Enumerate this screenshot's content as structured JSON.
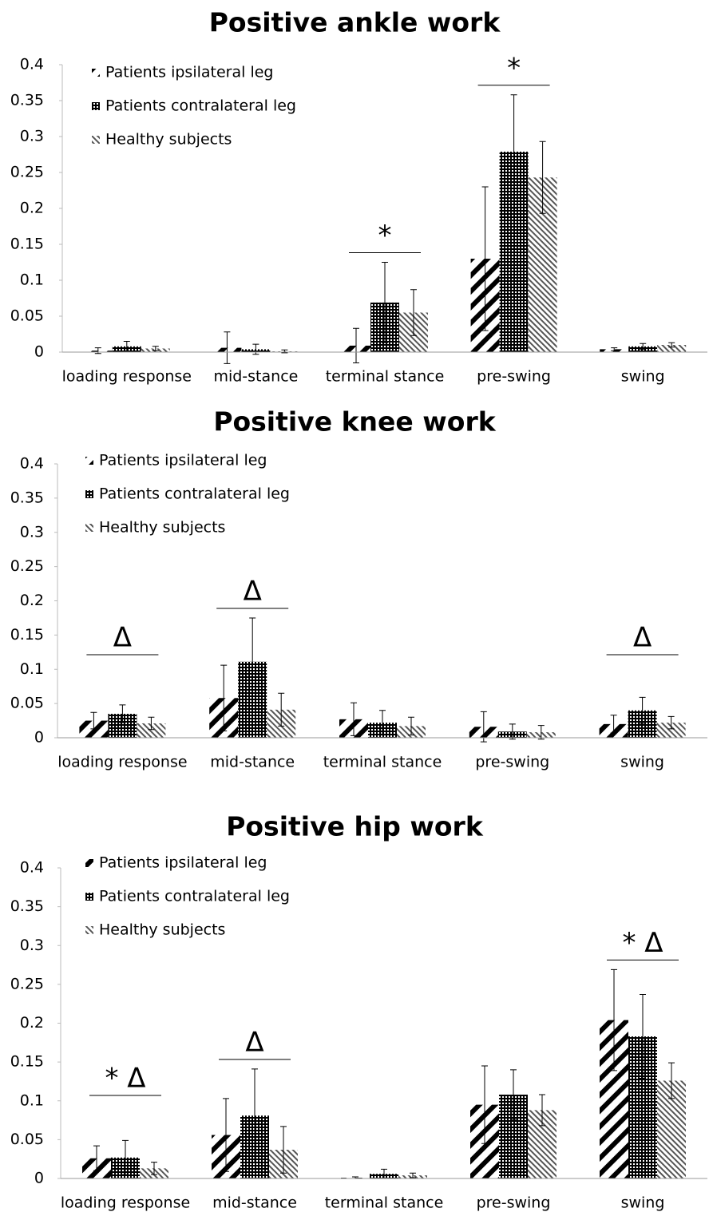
{
  "chart_data": [
    {
      "type": "bar",
      "title": "Positive ankle work",
      "categories": [
        "loading response",
        "mid-stance",
        "terminal stance",
        "pre-swing",
        "swing"
      ],
      "series": [
        {
          "name": "Patients ipsilateral leg",
          "color": "#000000",
          "values": [
            0.002,
            0.006,
            0.009,
            0.13,
            0.004
          ],
          "errors": [
            0.004,
            0.022,
            0.024,
            0.1,
            0.002
          ]
        },
        {
          "name": "Patients contralateral leg",
          "color": "#000000",
          "values": [
            0.008,
            0.004,
            0.069,
            0.279,
            0.008
          ],
          "errors": [
            0.007,
            0.007,
            0.056,
            0.079,
            0.004
          ]
        },
        {
          "name": "Healthy subjects",
          "color": "#555555",
          "values": [
            0.005,
            0.001,
            0.055,
            0.243,
            0.01
          ],
          "errors": [
            0.003,
            0.002,
            0.032,
            0.05,
            0.003
          ]
        }
      ],
      "annotations": [
        {
          "text": "*",
          "category": "terminal stance"
        },
        {
          "text": "*",
          "category": "pre-swing"
        }
      ],
      "ylim": [
        0,
        0.4
      ],
      "yticks": [
        0,
        0.05,
        0.1,
        0.15,
        0.2,
        0.25,
        0.3,
        0.35,
        0.4
      ]
    },
    {
      "type": "bar",
      "title": "Positive knee work",
      "categories": [
        "loading response",
        "mid-stance",
        "terminal stance",
        "pre-swing",
        "swing"
      ],
      "series": [
        {
          "name": "Patients ipsilateral leg",
          "color": "#000000",
          "values": [
            0.025,
            0.058,
            0.027,
            0.016,
            0.02
          ],
          "errors": [
            0.012,
            0.048,
            0.024,
            0.022,
            0.013
          ]
        },
        {
          "name": "Patients contralateral leg",
          "color": "#000000",
          "values": [
            0.035,
            0.111,
            0.022,
            0.009,
            0.04
          ],
          "errors": [
            0.013,
            0.064,
            0.018,
            0.011,
            0.019
          ]
        },
        {
          "name": "Healthy subjects",
          "color": "#555555",
          "values": [
            0.021,
            0.041,
            0.017,
            0.008,
            0.022
          ],
          "errors": [
            0.009,
            0.024,
            0.013,
            0.01,
            0.009
          ]
        }
      ],
      "annotations": [
        {
          "text": "Δ",
          "category": "loading response"
        },
        {
          "text": "Δ",
          "category": "mid-stance"
        },
        {
          "text": "Δ",
          "category": "swing"
        }
      ],
      "ylim": [
        0,
        0.4
      ],
      "yticks": [
        0,
        0.05,
        0.1,
        0.15,
        0.2,
        0.25,
        0.3,
        0.35,
        0.4
      ]
    },
    {
      "type": "bar",
      "title": "Positive hip work",
      "categories": [
        "loading response",
        "mid-stance",
        "terminal stance",
        "pre-swing",
        "swing"
      ],
      "series": [
        {
          "name": "Patients ipsilateral leg",
          "color": "#000000",
          "values": [
            0.026,
            0.056,
            0.001,
            0.095,
            0.204
          ],
          "errors": [
            0.016,
            0.047,
            0.001,
            0.05,
            0.065
          ]
        },
        {
          "name": "Patients contralateral leg",
          "color": "#000000",
          "values": [
            0.027,
            0.081,
            0.006,
            0.108,
            0.183
          ],
          "errors": [
            0.022,
            0.06,
            0.006,
            0.032,
            0.054
          ]
        },
        {
          "name": "Healthy subjects",
          "color": "#555555",
          "values": [
            0.013,
            0.037,
            0.004,
            0.088,
            0.126
          ],
          "errors": [
            0.008,
            0.03,
            0.003,
            0.02,
            0.023
          ]
        }
      ],
      "annotations": [
        {
          "text": "* Δ",
          "category": "loading response"
        },
        {
          "text": "Δ",
          "category": "mid-stance"
        },
        {
          "text": "* Δ",
          "category": "swing"
        }
      ],
      "ylim": [
        0,
        0.4
      ],
      "yticks": [
        0,
        0.05,
        0.1,
        0.15,
        0.2,
        0.25,
        0.3,
        0.35,
        0.4
      ]
    }
  ]
}
